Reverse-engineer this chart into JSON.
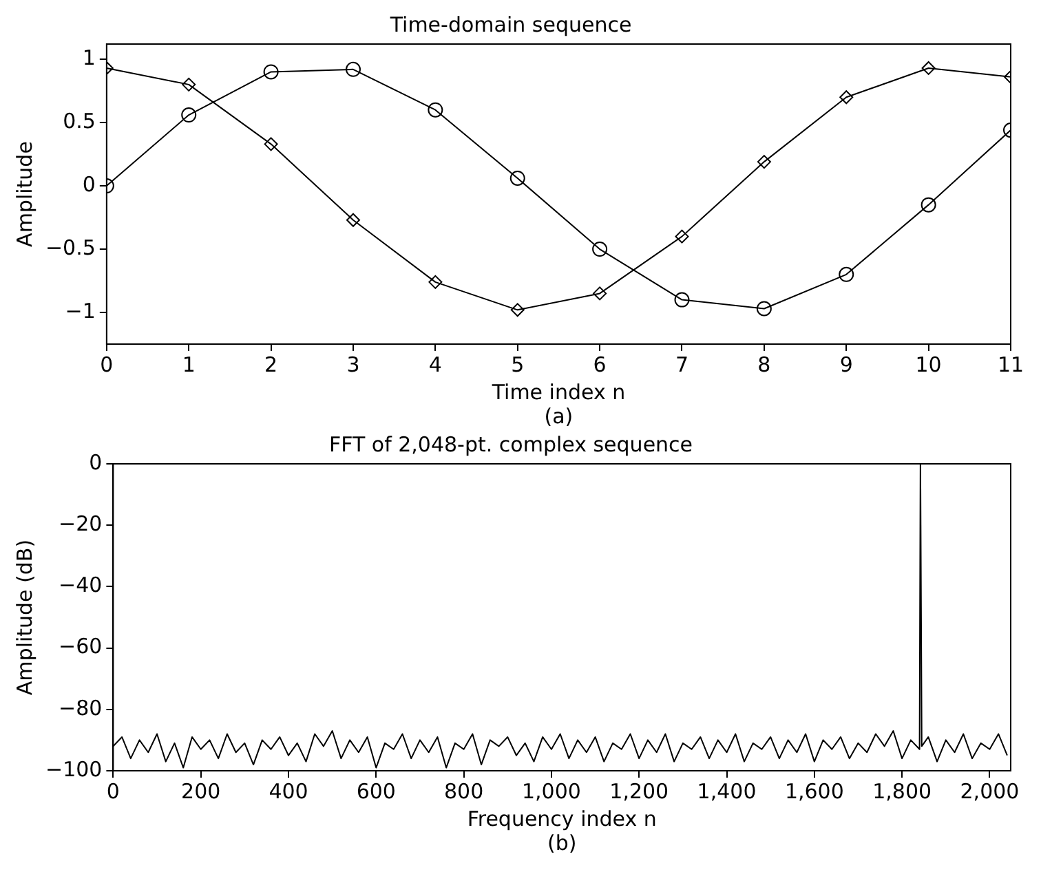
{
  "chart_data": [
    {
      "type": "line",
      "title": "Time-domain sequence",
      "xlabel": "Time index n",
      "ylabel": "Amplitude",
      "annotations": [
        "(a)"
      ],
      "x": [
        0,
        1,
        2,
        3,
        4,
        5,
        6,
        7,
        8,
        9,
        10,
        11
      ],
      "xlim": [
        0,
        11
      ],
      "xticks": [
        0,
        1,
        2,
        3,
        4,
        5,
        6,
        7,
        8,
        9,
        10,
        11
      ],
      "ylim": [
        -1.25,
        1.12
      ],
      "yticks": [
        -1,
        -0.5,
        0,
        0.5,
        1
      ],
      "grid": false,
      "legend": false,
      "line_style": "solid",
      "series": [
        {
          "color": "#000000",
          "marker": "circle",
          "values": [
            0,
            0.56,
            0.9,
            0.92,
            0.6,
            0.06,
            -0.5,
            -0.9,
            -0.97,
            -0.7,
            -0.15,
            0.44
          ]
        },
        {
          "color": "#000000",
          "marker": "diamond",
          "values": [
            0.93,
            0.8,
            0.33,
            -0.27,
            -0.76,
            -0.98,
            -0.85,
            -0.4,
            0.19,
            0.7,
            0.93,
            0.86
          ]
        }
      ]
    },
    {
      "type": "line",
      "title": "FFT of 2,048-pt. complex sequence",
      "xlabel": "Frequency index n",
      "ylabel": "Amplitude (dB)",
      "annotations": [
        "(b)"
      ],
      "xlim": [
        0,
        2048
      ],
      "xticks": [
        {
          "value": 0,
          "label": "0"
        },
        {
          "value": 200,
          "label": "200"
        },
        {
          "value": 400,
          "label": "400"
        },
        {
          "value": 600,
          "label": "600"
        },
        {
          "value": 800,
          "label": "800"
        },
        {
          "value": 1000,
          "label": "1,000"
        },
        {
          "value": 1200,
          "label": "1,200"
        },
        {
          "value": 1400,
          "label": "1,400"
        },
        {
          "value": 1600,
          "label": "1,600"
        },
        {
          "value": 1800,
          "label": "1,800"
        },
        {
          "value": 2000,
          "label": "2,000"
        }
      ],
      "ylim": [
        -100,
        0
      ],
      "yticks": [
        -100,
        -80,
        -60,
        -40,
        -20,
        0
      ],
      "grid": false,
      "legend": false,
      "line_style": "solid",
      "marker": "none",
      "series": [
        {
          "color": "#000000",
          "x": [
            0,
            20,
            40,
            60,
            80,
            100,
            120,
            140,
            160,
            180,
            200,
            220,
            240,
            260,
            280,
            300,
            320,
            340,
            360,
            380,
            400,
            420,
            440,
            460,
            480,
            500,
            520,
            540,
            560,
            580,
            600,
            620,
            640,
            660,
            680,
            700,
            720,
            740,
            760,
            780,
            800,
            820,
            840,
            860,
            880,
            900,
            920,
            940,
            960,
            980,
            1000,
            1020,
            1040,
            1060,
            1080,
            1100,
            1120,
            1140,
            1160,
            1180,
            1200,
            1220,
            1240,
            1260,
            1280,
            1300,
            1320,
            1340,
            1360,
            1380,
            1400,
            1420,
            1440,
            1460,
            1480,
            1500,
            1520,
            1540,
            1560,
            1580,
            1600,
            1620,
            1640,
            1660,
            1680,
            1700,
            1720,
            1740,
            1760,
            1780,
            1800,
            1820,
            1840,
            1842,
            1845,
            1860,
            1880,
            1900,
            1920,
            1940,
            1960,
            1980,
            2000,
            2020,
            2040
          ],
          "values": [
            -92,
            -89,
            -96,
            -90,
            -94,
            -88,
            -97,
            -91,
            -99,
            -89,
            -93,
            -90,
            -96,
            -88,
            -94,
            -91,
            -98,
            -90,
            -93,
            -89,
            -95,
            -91,
            -97,
            -88,
            -92,
            -87,
            -96,
            -90,
            -94,
            -89,
            -99,
            -91,
            -93,
            -88,
            -96,
            -90,
            -94,
            -89,
            -99,
            -91,
            -93,
            -88,
            -98,
            -90,
            -92,
            -89,
            -95,
            -91,
            -97,
            -89,
            -93,
            -88,
            -96,
            -90,
            -94,
            -89,
            -97,
            -91,
            -93,
            -88,
            -96,
            -90,
            -94,
            -88,
            -97,
            -91,
            -93,
            -89,
            -96,
            -90,
            -94,
            -88,
            -97,
            -91,
            -93,
            -89,
            -96,
            -90,
            -94,
            -88,
            -97,
            -90,
            -93,
            -89,
            -96,
            -91,
            -94,
            -88,
            -92,
            -87,
            -96,
            -90,
            -93,
            0,
            -92,
            -89,
            -97,
            -90,
            -94,
            -88,
            -96,
            -91,
            -93,
            -88,
            -95
          ]
        }
      ]
    }
  ]
}
